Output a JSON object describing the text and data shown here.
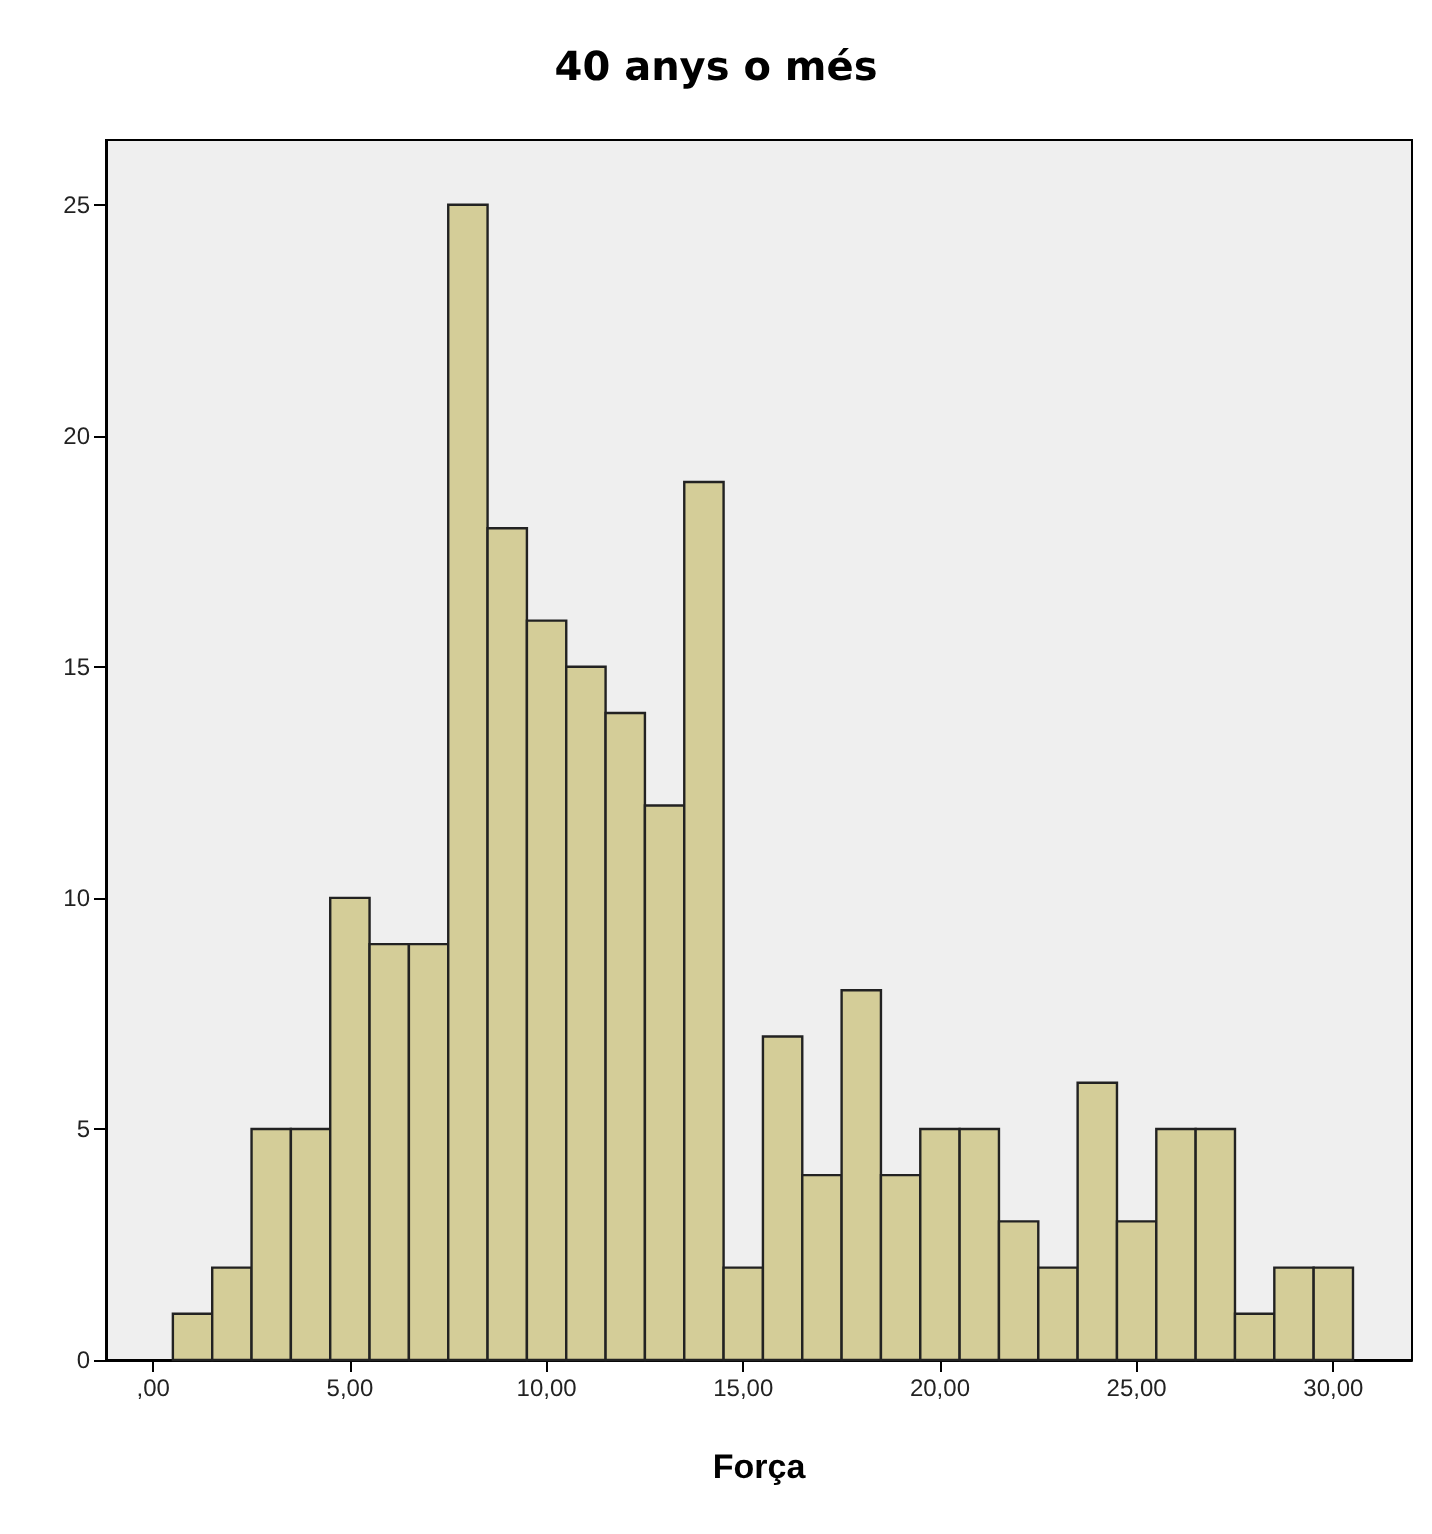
{
  "chart_data": {
    "type": "histogram",
    "title": "40 anys o més",
    "xlabel": "Força",
    "bins": [
      0.5,
      1.5,
      2.5,
      3.5,
      4.5,
      5.5,
      6.5,
      7.5,
      8.5,
      9.5,
      10.5,
      11.5,
      12.5,
      13.5,
      14.5,
      15.5,
      16.5,
      17.5,
      18.5,
      19.5,
      20.5,
      21.5,
      22.5,
      23.5,
      24.5,
      25.5,
      26.5,
      27.5,
      28.5,
      29.5,
      30.5
    ],
    "values": [
      1,
      2,
      5,
      5,
      10,
      9,
      9,
      25,
      18,
      16,
      15,
      14,
      12,
      19,
      2,
      7,
      4,
      8,
      4,
      5,
      5,
      3,
      2,
      6,
      3,
      5,
      5,
      1,
      2,
      2
    ],
    "color": "#d4cd98",
    "xlim": [
      -1.2,
      32
    ],
    "ylim": [
      0,
      26.4
    ],
    "xticks": [
      {
        "value": 0,
        "label": ",00"
      },
      {
        "value": 5,
        "label": "5,00"
      },
      {
        "value": 10,
        "label": "10,00"
      },
      {
        "value": 15,
        "label": "15,00"
      },
      {
        "value": 20,
        "label": "20,00"
      },
      {
        "value": 25,
        "label": "25,00"
      },
      {
        "value": 30,
        "label": "30,00"
      }
    ],
    "yticks": [
      0,
      5,
      10,
      15,
      20,
      25
    ],
    "grid": false
  }
}
